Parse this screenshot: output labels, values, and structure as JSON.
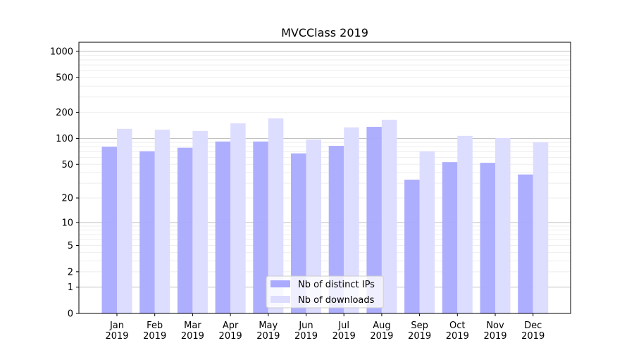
{
  "chart_data": {
    "type": "bar",
    "title": "MVCClass 2019",
    "xlabel": "",
    "ylabel": "",
    "yscale": "log(y+1)",
    "ylim": [
      0,
      1200
    ],
    "yticks": [
      0,
      1,
      2,
      5,
      10,
      20,
      50,
      100,
      200,
      500,
      1000
    ],
    "ytick_labels": [
      "0",
      "1",
      "2",
      "5",
      "10",
      "20",
      "50",
      "100",
      "200",
      "500",
      "1000"
    ],
    "grid": true,
    "legend_position": "bottom-center",
    "categories": [
      "Jan\n2019",
      "Feb\n2019",
      "Mar\n2019",
      "Apr\n2019",
      "May\n2019",
      "Jun\n2019",
      "Jul\n2019",
      "Aug\n2019",
      "Sep\n2019",
      "Oct\n2019",
      "Nov\n2019",
      "Dec\n2019"
    ],
    "series": [
      {
        "name": "Nb of distinct IPs",
        "color": "#aaaaff",
        "values": [
          80,
          71,
          78,
          92,
          92,
          67,
          82,
          136,
          33,
          53,
          52,
          38
        ]
      },
      {
        "name": "Nb of downloads",
        "color": "#ddddff",
        "values": [
          129,
          126,
          122,
          149,
          170,
          97,
          134,
          164,
          71,
          107,
          101,
          90
        ]
      }
    ]
  }
}
